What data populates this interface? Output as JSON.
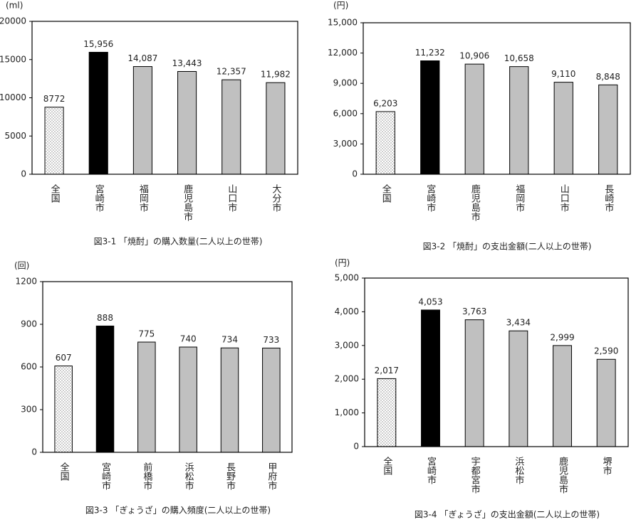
{
  "chart_data": [
    {
      "type": "bar",
      "unit_label": "(ml)",
      "caption": "図3-1 「焼酎」の購入数量(二人以上の世帯)",
      "categories": [
        "全国",
        "宮崎市",
        "福岡市",
        "鹿児島市",
        "山口市",
        "大分市"
      ],
      "values": [
        8772,
        15956,
        14087,
        13443,
        12357,
        11982
      ],
      "value_labels": [
        "8772",
        "15,956",
        "14,087",
        "13,443",
        "12,357",
        "11,982"
      ],
      "fills": [
        "dotted",
        "#000000",
        "#c0c0c0",
        "#c0c0c0",
        "#c0c0c0",
        "#c0c0c0"
      ],
      "ylim": [
        0,
        20000
      ],
      "yticks": [
        0,
        5000,
        10000,
        15000,
        20000
      ]
    },
    {
      "type": "bar",
      "unit_label": "(円)",
      "caption": "図3-2 「焼酎」の支出金額(二人以上の世帯)",
      "categories": [
        "全国",
        "宮崎市",
        "鹿児島市",
        "福岡市",
        "山口市",
        "長崎市"
      ],
      "values": [
        6203,
        11232,
        10906,
        10658,
        9110,
        8848
      ],
      "value_labels": [
        "6,203",
        "11,232",
        "10,906",
        "10,658",
        "9,110",
        "8,848"
      ],
      "fills": [
        "dotted",
        "#000000",
        "#c0c0c0",
        "#c0c0c0",
        "#c0c0c0",
        "#c0c0c0"
      ],
      "ylim": [
        0,
        15000
      ],
      "yticks": [
        0,
        {
          "value": 3000,
          "label": "3,000"
        },
        {
          "value": 6000,
          "label": "6,000"
        },
        {
          "value": 9000,
          "label": "9,000"
        },
        {
          "value": 12000,
          "label": "12,000"
        },
        {
          "value": 15000,
          "label": "15,000"
        }
      ]
    },
    {
      "type": "bar",
      "unit_label": "(回)",
      "caption": "図3-3 「ぎょうざ」の購入頻度(二人以上の世帯)",
      "categories": [
        "全国",
        "宮崎市",
        "前橋市",
        "浜松市",
        "長野市",
        "甲府市"
      ],
      "values": [
        607,
        888,
        775,
        740,
        734,
        733
      ],
      "fills": [
        "dotted",
        "#000000",
        "#c0c0c0",
        "#c0c0c0",
        "#c0c0c0",
        "#c0c0c0"
      ],
      "ylim": [
        0,
        1200
      ],
      "yticks": [
        0,
        300,
        600,
        900,
        1200
      ]
    },
    {
      "type": "bar",
      "unit_label": "(円)",
      "caption": "図3-4 「ぎょうざ」の支出金額(二人以上の世帯)",
      "categories": [
        "全国",
        "宮崎市",
        "宇都宮市",
        "浜松市",
        "鹿児島市",
        "堺市"
      ],
      "values": [
        2017,
        4053,
        3763,
        3434,
        2999,
        2590
      ],
      "value_labels": [
        "2,017",
        "4,053",
        "3,763",
        "3,434",
        "2,999",
        "2,590"
      ],
      "fills": [
        "dotted",
        "#000000",
        "#c0c0c0",
        "#c0c0c0",
        "#c0c0c0",
        "#c0c0c0"
      ],
      "ylim": [
        0,
        5000
      ],
      "yticks": [
        0,
        {
          "value": 1000,
          "label": "1,000"
        },
        {
          "value": 2000,
          "label": "2,000"
        },
        {
          "value": 3000,
          "label": "3,000"
        },
        {
          "value": 4000,
          "label": "4,000"
        },
        {
          "value": 5000,
          "label": "5,000"
        }
      ]
    }
  ]
}
